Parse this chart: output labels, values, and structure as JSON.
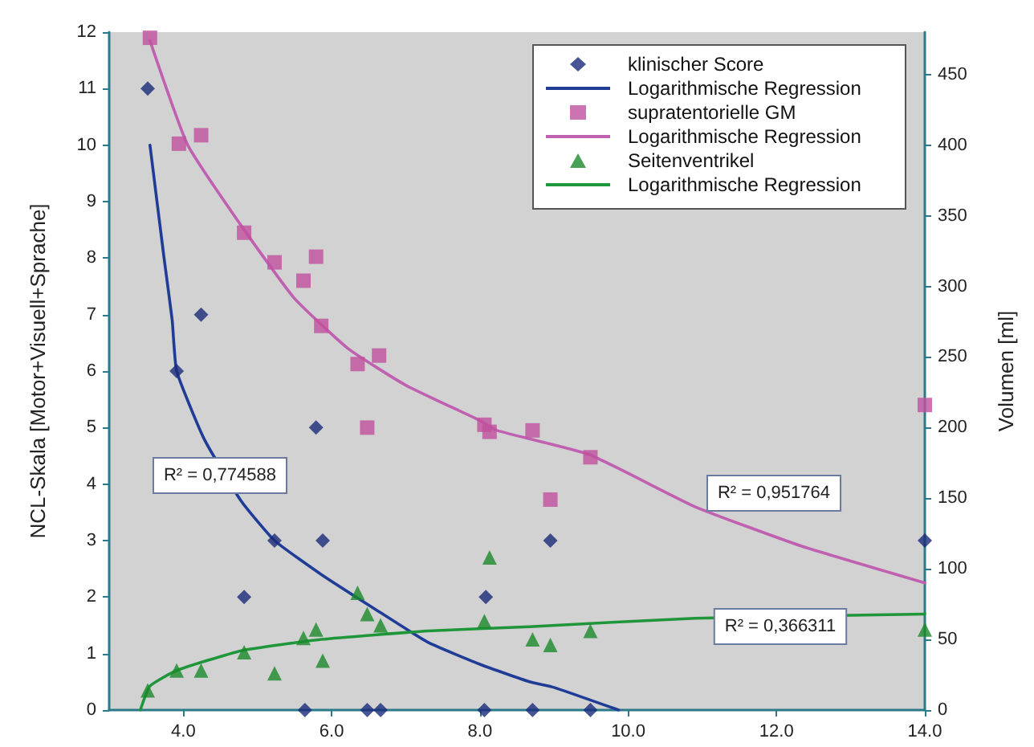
{
  "chart_data": {
    "type": "scatter",
    "ylabel": "NCL-Skala [Motor+Visuell+Sprache]",
    "y2label": "Volumen [ml]",
    "xlim": [
      3,
      14
    ],
    "xticks": [
      {
        "value": 4,
        "label": "4.0"
      },
      {
        "value": 6,
        "label": "6.0"
      },
      {
        "value": 8,
        "label": "8.0"
      },
      {
        "value": 10,
        "label": "10.0"
      },
      {
        "value": 12,
        "label": "12.0"
      },
      {
        "value": 14,
        "label": "14.0"
      }
    ],
    "ylim": [
      0,
      12
    ],
    "yticks": [
      0,
      1,
      2,
      3,
      4,
      5,
      6,
      7,
      8,
      9,
      10,
      11,
      12
    ],
    "y2lim": [
      0,
      480
    ],
    "y2ticks": [
      0,
      50,
      100,
      150,
      200,
      250,
      300,
      350,
      400,
      450
    ],
    "grid": false,
    "legend": "top right",
    "series": [
      {
        "type": "scatter",
        "name": "klinischer Score",
        "color": "#1a2a7a",
        "marker": "diamond",
        "x": [
          3.52,
          3.91,
          4.24,
          4.82,
          5.23,
          5.64,
          5.79,
          5.88,
          6.48,
          6.66,
          8.06,
          8.08,
          8.71,
          8.95,
          9.49,
          14.0
        ],
        "values": [
          11,
          6,
          7,
          2,
          3,
          0,
          5,
          3,
          0,
          0,
          0,
          2,
          0,
          3,
          0,
          3
        ]
      },
      {
        "type": "line",
        "name": "Logarithmische Regression",
        "color": "#1f3c96",
        "marker": "none",
        "x": [
          3.55,
          3.74,
          3.85,
          3.91,
          4.28,
          4.78,
          5.23,
          5.86,
          6.57,
          7.3,
          8.02,
          8.67,
          9.0,
          9.87
        ],
        "values": [
          10.0,
          8.0,
          6.9,
          6.0,
          4.8,
          3.7,
          3.0,
          2.4,
          1.8,
          1.2,
          0.8,
          0.5,
          0.4,
          0
        ]
      },
      {
        "type": "scatter",
        "name": "supratentorielle GM",
        "color": "#c0509e",
        "marker": "square",
        "axis": "y2",
        "x": [
          3.55,
          3.94,
          4.24,
          4.82,
          5.23,
          5.62,
          5.79,
          5.86,
          6.35,
          6.48,
          6.64,
          8.06,
          8.13,
          8.71,
          8.95,
          9.49,
          14.0
        ],
        "values": [
          476,
          401,
          407,
          338,
          317,
          304,
          321,
          272,
          245,
          200,
          251,
          202,
          197,
          198,
          149,
          179,
          216
        ]
      },
      {
        "type": "line",
        "name": "Logarithmische Regression",
        "color": "#c060b0",
        "marker": "none",
        "axis": "y2",
        "x": [
          3.55,
          4.06,
          4.78,
          5.49,
          6.22,
          7.0,
          8.0,
          8.23,
          9.47,
          10.9,
          12.34,
          14.0
        ],
        "values": [
          474,
          400,
          343,
          292,
          256,
          230,
          205,
          198,
          181,
          144,
          116,
          90
        ]
      },
      {
        "type": "scatter",
        "name": "Seitenventrikel",
        "color": "#1a8a2a",
        "marker": "triangle",
        "axis": "y2",
        "x": [
          3.52,
          3.91,
          4.24,
          4.82,
          5.23,
          5.62,
          5.79,
          5.88,
          6.35,
          6.48,
          6.66,
          8.06,
          8.13,
          8.71,
          8.95,
          9.49,
          14.0
        ],
        "values": [
          14,
          28,
          28,
          41,
          26,
          51,
          57,
          35,
          83,
          68,
          60,
          63,
          108,
          50,
          46,
          56,
          57
        ]
      },
      {
        "type": "line",
        "name": "Logarithmische Regression",
        "color": "#20963a",
        "marker": "none",
        "axis": "y2",
        "x": [
          3.42,
          3.55,
          3.91,
          4.78,
          5.86,
          7.3,
          8.67,
          10.9,
          14.0
        ],
        "values": [
          0,
          17,
          28,
          42,
          50,
          56,
          59,
          65,
          68
        ]
      }
    ],
    "annotations": [
      "R² = 0,774588",
      "R² = 0,951764",
      "R² = 0,366311"
    ]
  }
}
